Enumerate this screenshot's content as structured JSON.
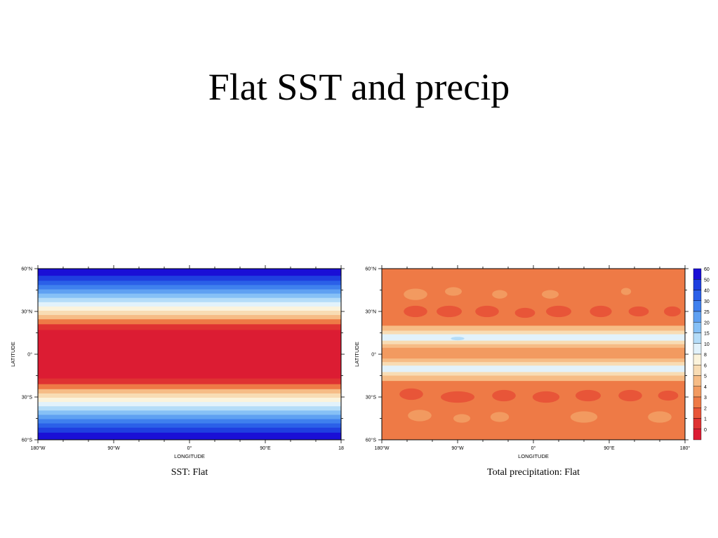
{
  "slide": {
    "title": "Flat SST and precip"
  },
  "chart_data": [
    {
      "type": "heatmap",
      "title": "SST: Flat",
      "xlabel": "LONGITUDE",
      "ylabel": "LATITUDE",
      "xlim": [
        -180,
        180
      ],
      "ylim": [
        -60,
        60
      ],
      "x_ticks": [
        "180°W",
        "90°W",
        "0°",
        "90°E",
        "18"
      ],
      "y_ticks": [
        "60°N",
        "30°N",
        "0°",
        "30°S",
        "60°S"
      ],
      "palette": [
        "#1a0fd6",
        "#1f3fe0",
        "#2b60e8",
        "#3f80ee",
        "#5fa0f2",
        "#86c0f6",
        "#b4dcf8",
        "#e2f2fb",
        "#fbf3dc",
        "#f8dcb4",
        "#f6bc86",
        "#f29a60",
        "#ee7a46",
        "#e85538",
        "#df3232",
        "#dc1c33"
      ],
      "sst_bands": [
        {
          "lat_from": 60,
          "lat_to": 55,
          "level": 0
        },
        {
          "lat_from": 55,
          "lat_to": 51.5,
          "level": 1
        },
        {
          "lat_from": 51.5,
          "lat_to": 48.5,
          "level": 2
        },
        {
          "lat_from": 48.5,
          "lat_to": 45.5,
          "level": 3
        },
        {
          "lat_from": 45.5,
          "lat_to": 42.5,
          "level": 4
        },
        {
          "lat_from": 42.5,
          "lat_to": 39.5,
          "level": 5
        },
        {
          "lat_from": 39.5,
          "lat_to": 36.5,
          "level": 6
        },
        {
          "lat_from": 36.5,
          "lat_to": 33.5,
          "level": 7
        },
        {
          "lat_from": 33.5,
          "lat_to": 30.5,
          "level": 8
        },
        {
          "lat_from": 30.5,
          "lat_to": 27.5,
          "level": 9
        },
        {
          "lat_from": 27.5,
          "lat_to": 24.5,
          "level": 10
        },
        {
          "lat_from": 24.5,
          "lat_to": 21,
          "level": 12
        },
        {
          "lat_from": 21,
          "lat_to": 17,
          "level": 14
        },
        {
          "lat_from": 17,
          "lat_to": -17,
          "level": 15
        },
        {
          "lat_from": -17,
          "lat_to": -21,
          "level": 14
        },
        {
          "lat_from": -21,
          "lat_to": -24.5,
          "level": 12
        },
        {
          "lat_from": -24.5,
          "lat_to": -27.5,
          "level": 10
        },
        {
          "lat_from": -27.5,
          "lat_to": -30.5,
          "level": 9
        },
        {
          "lat_from": -30.5,
          "lat_to": -33.5,
          "level": 8
        },
        {
          "lat_from": -33.5,
          "lat_to": -36.5,
          "level": 7
        },
        {
          "lat_from": -36.5,
          "lat_to": -39.5,
          "level": 6
        },
        {
          "lat_from": -39.5,
          "lat_to": -42.5,
          "level": 5
        },
        {
          "lat_from": -42.5,
          "lat_to": -45.5,
          "level": 4
        },
        {
          "lat_from": -45.5,
          "lat_to": -48.5,
          "level": 3
        },
        {
          "lat_from": -48.5,
          "lat_to": -51.5,
          "level": 2
        },
        {
          "lat_from": -51.5,
          "lat_to": -55,
          "level": 1
        },
        {
          "lat_from": -55,
          "lat_to": -60,
          "level": 0
        }
      ]
    },
    {
      "type": "heatmap",
      "title": "Total precipitation: Flat",
      "xlabel": "LONGITUDE",
      "ylabel": "LATITUDE",
      "xlim": [
        -180,
        180
      ],
      "ylim": [
        -60,
        60
      ],
      "x_ticks": [
        "180°W",
        "90°W",
        "0°",
        "90°E",
        "180°"
      ],
      "y_ticks": [
        "60°N",
        "30°N",
        "0°",
        "30°S",
        "60°S"
      ],
      "background_level": 3,
      "colorbar": {
        "levels": [
          "60",
          "50",
          "40",
          "30",
          "25",
          "20",
          "15",
          "10",
          "8",
          "6",
          "5",
          "4",
          "3",
          "2",
          "1",
          "0"
        ],
        "colors": [
          "#1a0fd6",
          "#1f3fe0",
          "#2b60e8",
          "#3f80ee",
          "#5fa0f2",
          "#86c0f6",
          "#b4dcf8",
          "#e2f2fb",
          "#fbf3dc",
          "#f8dcb4",
          "#f6bc86",
          "#f29a60",
          "#ee7a46",
          "#e85538",
          "#df3232",
          "#dc1c33"
        ]
      },
      "precip_bands": [
        {
          "lat_from": 20,
          "lat_to": 16.5,
          "level": 5
        },
        {
          "lat_from": 16.5,
          "lat_to": 14,
          "level": 6
        },
        {
          "lat_from": 14,
          "lat_to": 9.5,
          "level": 8
        },
        {
          "lat_from": 9.5,
          "lat_to": 7,
          "level": 6
        },
        {
          "lat_from": 7,
          "lat_to": 4.5,
          "level": 5
        },
        {
          "lat_from": 4.5,
          "lat_to": -3,
          "level": 4
        },
        {
          "lat_from": -3,
          "lat_to": -5.5,
          "level": 5
        },
        {
          "lat_from": -5.5,
          "lat_to": -8,
          "level": 6
        },
        {
          "lat_from": -8,
          "lat_to": -12.5,
          "level": 8
        },
        {
          "lat_from": -12.5,
          "lat_to": -15,
          "level": 6
        },
        {
          "lat_from": -15,
          "lat_to": -18.5,
          "level": 5
        }
      ],
      "dry_patches": [
        {
          "lon": -140,
          "lat": 30,
          "rlon": 14,
          "rlat": 4,
          "level": 2
        },
        {
          "lon": -100,
          "lat": 30,
          "rlon": 15,
          "rlat": 4,
          "level": 2
        },
        {
          "lon": -55,
          "lat": 30,
          "rlon": 14,
          "rlat": 4,
          "level": 2
        },
        {
          "lon": -10,
          "lat": 29,
          "rlon": 12,
          "rlat": 3.5,
          "level": 2
        },
        {
          "lon": 30,
          "lat": 30,
          "rlon": 15,
          "rlat": 4,
          "level": 2
        },
        {
          "lon": 80,
          "lat": 30,
          "rlon": 13,
          "rlat": 4,
          "level": 2
        },
        {
          "lon": 125,
          "lat": 30,
          "rlon": 12,
          "rlat": 3.5,
          "level": 2
        },
        {
          "lon": 165,
          "lat": 30,
          "rlon": 10,
          "rlat": 3.5,
          "level": 2
        },
        {
          "lon": -145,
          "lat": -28,
          "rlon": 14,
          "rlat": 4,
          "level": 2
        },
        {
          "lon": -90,
          "lat": -30,
          "rlon": 20,
          "rlat": 4,
          "level": 2
        },
        {
          "lon": -35,
          "lat": -29,
          "rlon": 14,
          "rlat": 4,
          "level": 2
        },
        {
          "lon": 15,
          "lat": -30,
          "rlon": 16,
          "rlat": 4,
          "level": 2
        },
        {
          "lon": 65,
          "lat": -29,
          "rlon": 15,
          "rlat": 4,
          "level": 2
        },
        {
          "lon": 115,
          "lat": -29,
          "rlon": 14,
          "rlat": 4,
          "level": 2
        },
        {
          "lon": 160,
          "lat": -29,
          "rlon": 12,
          "rlat": 3.5,
          "level": 2
        }
      ],
      "light_patches": [
        {
          "lon": -140,
          "lat": 42,
          "rlon": 14,
          "rlat": 4,
          "level": 4
        },
        {
          "lon": -95,
          "lat": 44,
          "rlon": 10,
          "rlat": 3,
          "level": 4
        },
        {
          "lon": -40,
          "lat": 42,
          "rlon": 9,
          "rlat": 3,
          "level": 4
        },
        {
          "lon": 20,
          "lat": 42,
          "rlon": 10,
          "rlat": 3,
          "level": 4
        },
        {
          "lon": 110,
          "lat": 44,
          "rlon": 6,
          "rlat": 2.5,
          "level": 4
        },
        {
          "lon": -135,
          "lat": -43,
          "rlon": 14,
          "rlat": 4,
          "level": 4
        },
        {
          "lon": -85,
          "lat": -45,
          "rlon": 10,
          "rlat": 3,
          "level": 4
        },
        {
          "lon": -40,
          "lat": -44,
          "rlon": 11,
          "rlat": 3.5,
          "level": 4
        },
        {
          "lon": 60,
          "lat": -44,
          "rlon": 16,
          "rlat": 4,
          "level": 4
        },
        {
          "lon": 150,
          "lat": -44,
          "rlon": 14,
          "rlat": 4,
          "level": 4
        },
        {
          "lon": -90,
          "lat": 11,
          "rlon": 8,
          "rlat": 1.2,
          "level": 9
        }
      ]
    }
  ]
}
